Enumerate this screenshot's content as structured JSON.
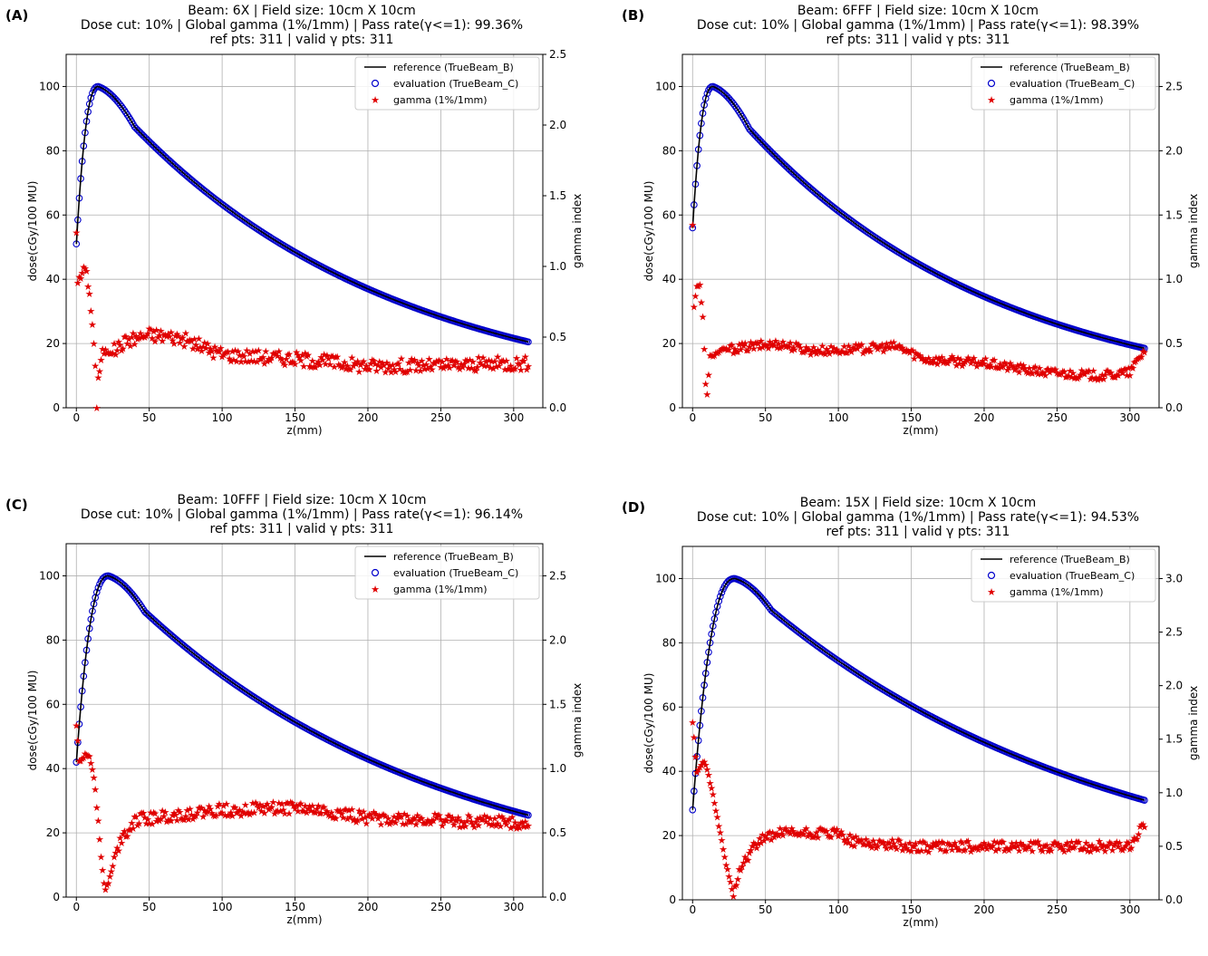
{
  "chart_data": [
    {
      "type": "line",
      "panel_label": "(A)",
      "title_lines": [
        "Beam: 6X | Field size: 10cm X 10cm",
        "Dose cut: 10% | Global gamma (1%/1mm) | Pass rate(γ<=1): 99.36%",
        "ref pts: 311 | valid γ pts: 311"
      ],
      "xlabel": "z(mm)",
      "ylabel": "dose(cGy/100 MU)",
      "y2label": "gamma index",
      "xlim": [
        -7,
        320
      ],
      "ylim": [
        0,
        110
      ],
      "y2lim": [
        0,
        2.5
      ],
      "xticks": [
        0,
        50,
        100,
        150,
        200,
        250,
        300
      ],
      "yticks": [
        0,
        20,
        40,
        60,
        80,
        100
      ],
      "y2ticks": [
        0.0,
        0.5,
        1.0,
        1.5,
        2.0,
        2.5
      ],
      "grid": true,
      "legend_position": "top-right",
      "legend": [
        "reference (TrueBeam_B)",
        "evaluation (TrueBeam_C)",
        "gamma (1%/1mm)"
      ],
      "dose_profile": {
        "surface": 51,
        "dmax_mm": 15,
        "end_dose": 20.5,
        "n_points": 311
      },
      "gamma_keypoints": [
        [
          0,
          1.25
        ],
        [
          1,
          0.9
        ],
        [
          3,
          0.92
        ],
        [
          5,
          1.0
        ],
        [
          7,
          0.95
        ],
        [
          9,
          0.8
        ],
        [
          11,
          0.6
        ],
        [
          13,
          0.3
        ],
        [
          14,
          0.0
        ],
        [
          15,
          0.2
        ],
        [
          18,
          0.4
        ],
        [
          25,
          0.4
        ],
        [
          35,
          0.48
        ],
        [
          50,
          0.52
        ],
        [
          70,
          0.5
        ],
        [
          100,
          0.38
        ],
        [
          150,
          0.35
        ],
        [
          200,
          0.3
        ],
        [
          250,
          0.3
        ],
        [
          310,
          0.32
        ]
      ],
      "gamma_spread": 0.05
    },
    {
      "type": "line",
      "panel_label": "(B)",
      "title_lines": [
        "Beam: 6FFF | Field size: 10cm X 10cm",
        "Dose cut: 10% | Global gamma (1%/1mm) | Pass rate(γ<=1): 98.39%",
        "ref pts: 311 | valid γ pts: 311"
      ],
      "xlabel": "z(mm)",
      "ylabel": "dose(cGy/100 MU)",
      "y2label": "gamma index",
      "xlim": [
        -7,
        320
      ],
      "ylim": [
        0,
        110
      ],
      "y2lim": [
        0,
        2.75
      ],
      "xticks": [
        0,
        50,
        100,
        150,
        200,
        250,
        300
      ],
      "yticks": [
        0,
        20,
        40,
        60,
        80,
        100
      ],
      "y2ticks": [
        0.0,
        0.5,
        1.0,
        1.5,
        2.0,
        2.5
      ],
      "grid": true,
      "legend_position": "top-right",
      "legend": [
        "reference (TrueBeam_B)",
        "evaluation (TrueBeam_C)",
        "gamma (1%/1mm)"
      ],
      "dose_profile": {
        "surface": 56,
        "dmax_mm": 14,
        "end_dose": 18.5,
        "n_points": 311
      },
      "gamma_keypoints": [
        [
          0,
          1.42
        ],
        [
          1,
          0.8
        ],
        [
          3,
          0.95
        ],
        [
          5,
          0.95
        ],
        [
          7,
          0.7
        ],
        [
          9,
          0.2
        ],
        [
          10,
          0.1
        ],
        [
          12,
          0.4
        ],
        [
          20,
          0.45
        ],
        [
          40,
          0.48
        ],
        [
          60,
          0.5
        ],
        [
          80,
          0.45
        ],
        [
          100,
          0.45
        ],
        [
          140,
          0.48
        ],
        [
          160,
          0.38
        ],
        [
          200,
          0.35
        ],
        [
          240,
          0.28
        ],
        [
          280,
          0.25
        ],
        [
          300,
          0.28
        ],
        [
          310,
          0.45
        ]
      ],
      "gamma_spread": 0.035
    },
    {
      "type": "line",
      "panel_label": "(C)",
      "title_lines": [
        "Beam: 10FFF | Field size: 10cm X 10cm",
        "Dose cut: 10% | Global gamma (1%/1mm) | Pass rate(γ<=1): 96.14%",
        "ref pts: 311 | valid γ pts: 311"
      ],
      "xlabel": "z(mm)",
      "ylabel": "dose(cGy/100 MU)",
      "y2label": "gamma index",
      "xlim": [
        -7,
        320
      ],
      "ylim": [
        0,
        110
      ],
      "y2lim": [
        0,
        2.75
      ],
      "xticks": [
        0,
        50,
        100,
        150,
        200,
        250,
        300
      ],
      "yticks": [
        0,
        20,
        40,
        60,
        80,
        100
      ],
      "y2ticks": [
        0.0,
        0.5,
        1.0,
        1.5,
        2.0,
        2.5
      ],
      "grid": true,
      "legend_position": "top-right",
      "legend": [
        "reference (TrueBeam_B)",
        "evaluation (TrueBeam_C)",
        "gamma (1%/1mm)"
      ],
      "dose_profile": {
        "surface": 42,
        "dmax_mm": 22,
        "end_dose": 25.5,
        "n_points": 311
      },
      "gamma_keypoints": [
        [
          0,
          1.35
        ],
        [
          2,
          1.05
        ],
        [
          5,
          1.1
        ],
        [
          9,
          1.1
        ],
        [
          12,
          0.95
        ],
        [
          15,
          0.6
        ],
        [
          18,
          0.2
        ],
        [
          20,
          0.05
        ],
        [
          24,
          0.2
        ],
        [
          30,
          0.45
        ],
        [
          40,
          0.6
        ],
        [
          60,
          0.63
        ],
        [
          100,
          0.68
        ],
        [
          150,
          0.7
        ],
        [
          200,
          0.62
        ],
        [
          250,
          0.6
        ],
        [
          310,
          0.58
        ]
      ],
      "gamma_spread": 0.05
    },
    {
      "type": "line",
      "panel_label": "(D)",
      "title_lines": [
        "Beam: 15X | Field size: 10cm X 10cm",
        "Dose cut: 10% | Global gamma (1%/1mm) | Pass rate(γ<=1): 94.53%",
        "ref pts: 311 | valid γ pts: 311"
      ],
      "xlabel": "z(mm)",
      "ylabel": "dose(cGy/100 MU)",
      "y2label": "gamma index",
      "xlim": [
        -7,
        320
      ],
      "ylim": [
        0,
        110
      ],
      "y2lim": [
        0,
        3.3
      ],
      "xticks": [
        0,
        50,
        100,
        150,
        200,
        250,
        300
      ],
      "yticks": [
        0,
        20,
        40,
        60,
        80,
        100
      ],
      "y2ticks": [
        0.0,
        0.5,
        1.0,
        1.5,
        2.0,
        2.5,
        3.0
      ],
      "grid": true,
      "legend_position": "top-right",
      "legend": [
        "reference (TrueBeam_B)",
        "evaluation (TrueBeam_C)",
        "gamma (1%/1mm)"
      ],
      "dose_profile": {
        "surface": 28,
        "dmax_mm": 29,
        "end_dose": 31,
        "n_points": 311
      },
      "gamma_keypoints": [
        [
          0,
          1.65
        ],
        [
          3,
          1.2
        ],
        [
          8,
          1.3
        ],
        [
          12,
          1.1
        ],
        [
          18,
          0.7
        ],
        [
          22,
          0.4
        ],
        [
          26,
          0.15
        ],
        [
          28,
          0.05
        ],
        [
          32,
          0.3
        ],
        [
          45,
          0.55
        ],
        [
          60,
          0.62
        ],
        [
          100,
          0.62
        ],
        [
          110,
          0.55
        ],
        [
          150,
          0.5
        ],
        [
          200,
          0.5
        ],
        [
          250,
          0.5
        ],
        [
          300,
          0.5
        ],
        [
          310,
          0.7
        ]
      ],
      "gamma_spread": 0.05
    }
  ]
}
